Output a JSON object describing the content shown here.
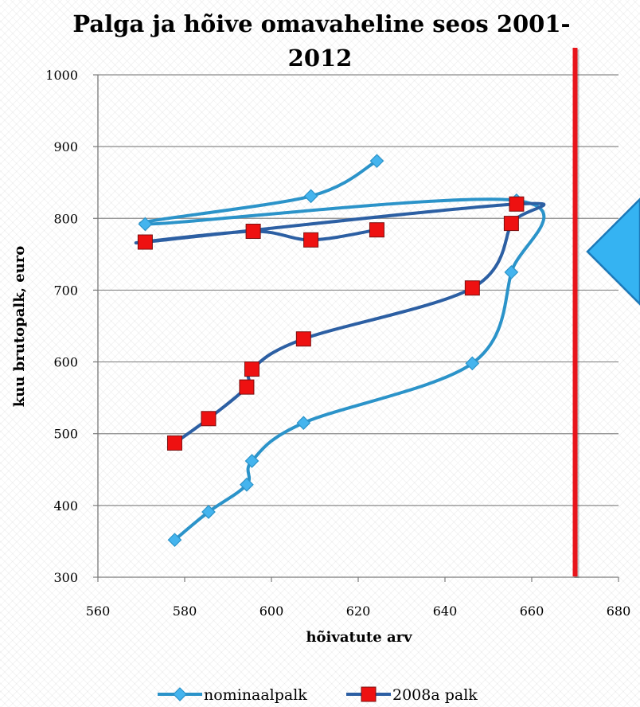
{
  "chart_data": {
    "type": "scatter",
    "title_lines": [
      "Palga ja hõive omavaheline seos 2001-",
      "2012"
    ],
    "xlabel": "hõivatute arv",
    "ylabel": "kuu brutopalk, euro",
    "xlim": [
      560,
      680
    ],
    "ylim": [
      300,
      1000
    ],
    "x_ticks": [
      "560",
      "580",
      "600",
      "620",
      "640",
      "660",
      "680"
    ],
    "y_ticks": [
      "300",
      "400",
      "500",
      "600",
      "700",
      "800",
      "900",
      "1000"
    ],
    "grid": "horizontal",
    "smooth_lines": true,
    "legend_position": "bottom",
    "reference_line": {
      "x": 670,
      "color": "#e8141b"
    },
    "series": [
      {
        "name": "nominaalpalk",
        "color": "#2b93c9",
        "marker": "diamond",
        "marker_color": "#44b4ee",
        "points": [
          {
            "x": 577.7,
            "y": 352
          },
          {
            "x": 585.5,
            "y": 391
          },
          {
            "x": 594.3,
            "y": 429
          },
          {
            "x": 595.5,
            "y": 462
          },
          {
            "x": 607.4,
            "y": 515
          },
          {
            "x": 646.3,
            "y": 598
          },
          {
            "x": 655.3,
            "y": 725
          },
          {
            "x": 656.5,
            "y": 825
          },
          {
            "x": 570.9,
            "y": 792
          },
          {
            "x": 609.1,
            "y": 831
          },
          {
            "x": 624.3,
            "y": 880
          }
        ]
      },
      {
        "name": "2008a palk",
        "color": "#2c5fa3",
        "marker": "square",
        "marker_color": "#ee1111",
        "points": [
          {
            "x": 577.7,
            "y": 487
          },
          {
            "x": 585.5,
            "y": 521
          },
          {
            "x": 594.3,
            "y": 565
          },
          {
            "x": 595.5,
            "y": 590
          },
          {
            "x": 607.4,
            "y": 632
          },
          {
            "x": 646.3,
            "y": 703
          },
          {
            "x": 655.3,
            "y": 793
          },
          {
            "x": 656.5,
            "y": 820
          },
          {
            "x": 570.9,
            "y": 767
          },
          {
            "x": 595.8,
            "y": 782
          },
          {
            "x": 609.1,
            "y": 770
          },
          {
            "x": 624.3,
            "y": 784
          }
        ]
      }
    ]
  },
  "decoration": {
    "arrow_fill": "#35b3f2",
    "arrow_stroke": "#1c78b8"
  }
}
